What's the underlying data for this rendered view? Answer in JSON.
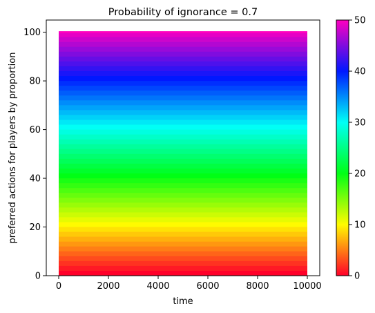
{
  "chart_data": {
    "type": "area",
    "title": "Probability of ignorance  = 0.7",
    "xlabel": "time",
    "ylabel": "preferred actions for players by proportion",
    "xlim": [
      -500,
      10500
    ],
    "ylim": [
      0,
      105
    ],
    "x_ticks": [
      0,
      2000,
      4000,
      6000,
      8000,
      10000
    ],
    "x_tick_labels": [
      "0",
      "2000",
      "4000",
      "6000",
      "8000",
      "10000"
    ],
    "y_ticks": [
      0,
      20,
      40,
      60,
      80,
      100
    ],
    "y_tick_labels": [
      "0",
      "20",
      "40",
      "60",
      "80",
      "100"
    ],
    "x_start": 0,
    "x_end": 10000,
    "stacked_layers": 50,
    "stack_total": 100,
    "grid": false,
    "colorbar": {
      "colormap": "gist_rainbow",
      "min": 0,
      "max": 50,
      "ticks": [
        0,
        10,
        20,
        30,
        40,
        50
      ],
      "tick_labels": [
        "0",
        "10",
        "20",
        "30",
        "40",
        "50"
      ],
      "stops": [
        {
          "value": 0,
          "color": "#ff0029"
        },
        {
          "value": 10,
          "color": "#fffb00"
        },
        {
          "value": 20,
          "color": "#00ff15"
        },
        {
          "value": 30,
          "color": "#00fff6"
        },
        {
          "value": 40,
          "color": "#0018ff"
        },
        {
          "value": 50,
          "color": "#ff00bf"
        }
      ]
    }
  }
}
